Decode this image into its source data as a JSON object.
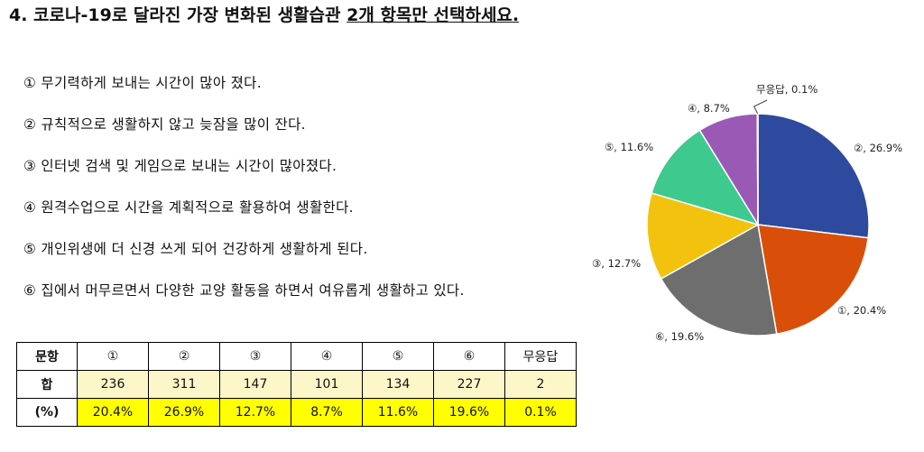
{
  "title": {
    "prefix": "4. 코로나-19로 달라진 가장 변화된 생활습관 ",
    "underlined": "2개 항목만 선택하세요."
  },
  "options": [
    "① 무기력하게 보내는 시간이 많아 졌다.",
    "② 규칙적으로 생활하지 않고 늦잠을 많이 잔다.",
    "③ 인터넷 검색 및 게임으로 보내는 시간이 많아졌다.",
    "④ 원격수업으로 시간을 계획적으로 활용하여 생활한다.",
    "⑤ 개인위생에 더 신경 쓰게 되어 건강하게 생활하게 된다.",
    "⑥ 집에서 머무르면서 다양한 교양 활동을 하면서 여유롭게 생활하고 있다."
  ],
  "table": {
    "header": [
      "문항",
      "①",
      "②",
      "③",
      "④",
      "⑤",
      "⑥",
      "무응답"
    ],
    "count_row": [
      "합",
      "236",
      "311",
      "147",
      "101",
      "134",
      "227",
      "2"
    ],
    "pct_row": [
      "(%)",
      "20.4%",
      "26.9%",
      "12.7%",
      "8.7%",
      "11.6%",
      "19.6%",
      "0.1%"
    ]
  },
  "chart_data": {
    "type": "pie",
    "start": "12 o'clock, clockwise",
    "slices": [
      {
        "label": "②, 26.9%",
        "value": 26.9,
        "color": "#2e4a9e"
      },
      {
        "label": "①, 20.4%",
        "value": 20.4,
        "color": "#d94f0a"
      },
      {
        "label": "⑥, 19.6%",
        "value": 19.6,
        "color": "#6e6e6e"
      },
      {
        "label": "③, 12.7%",
        "value": 12.7,
        "color": "#f2c20f"
      },
      {
        "label": "⑤, 11.6%",
        "value": 11.6,
        "color": "#3ec98e"
      },
      {
        "label": "④, 8.7%",
        "value": 8.7,
        "color": "#9b59b6"
      },
      {
        "label": "무응답, 0.1%",
        "value": 0.1,
        "color": "#4a6fb5"
      }
    ]
  }
}
